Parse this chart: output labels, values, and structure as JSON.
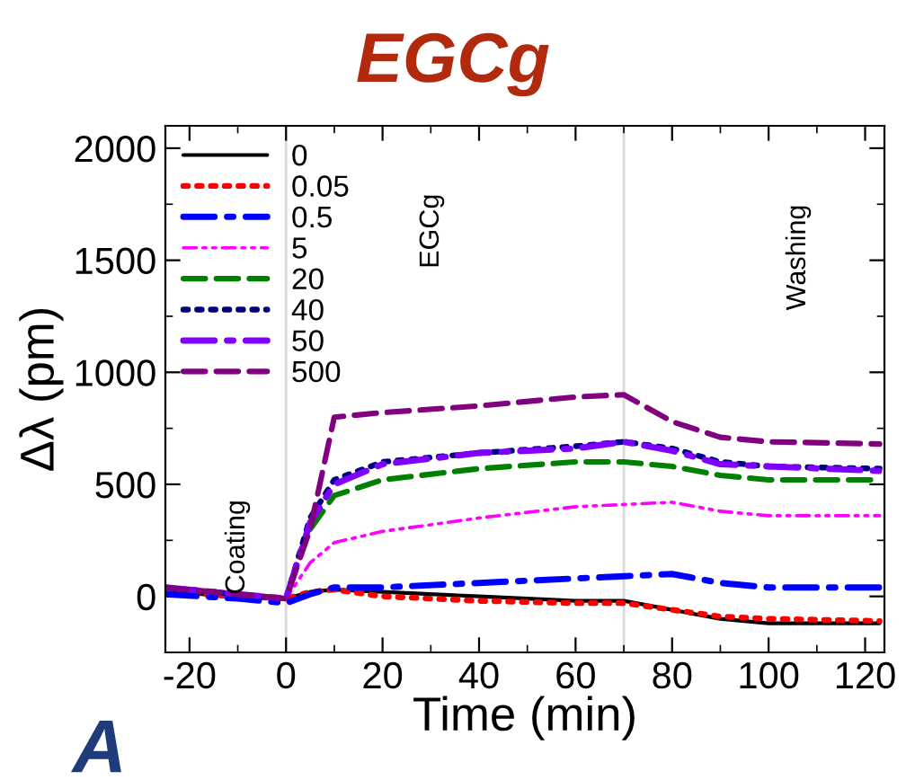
{
  "chart_data": {
    "type": "line",
    "title": "EGCg",
    "xlabel": "Time (min)",
    "ylabel": "Δλ (pm)",
    "xlim": [
      -25,
      124
    ],
    "xticks": [
      -20,
      0,
      20,
      40,
      60,
      80,
      100,
      120
    ],
    "ylim": [
      -250,
      2100
    ],
    "yticks": [
      0,
      500,
      1000,
      1500,
      2000
    ],
    "grid": false,
    "legend": "top left",
    "ref_lines": [
      {
        "axis": "x",
        "value": 0,
        "color": "#d9d9d9"
      },
      {
        "axis": "x",
        "value": 70,
        "color": "#d9d9d9"
      }
    ],
    "annotations": [
      "Coating",
      "EGCg",
      "Washing",
      "A"
    ],
    "x": [
      -25,
      -10,
      0,
      5,
      10,
      20,
      40,
      60,
      70,
      80,
      90,
      100,
      123
    ],
    "series": [
      {
        "name": "0",
        "color": "#000000",
        "line_style": "solid",
        "values": [
          20,
          0,
          -10,
          20,
          30,
          20,
          0,
          -20,
          -20,
          -60,
          -100,
          -120,
          -120
        ]
      },
      {
        "name": "0.05",
        "color": "#ff0000",
        "line_style": "dotted",
        "values": [
          20,
          0,
          -10,
          20,
          30,
          0,
          -20,
          -30,
          -30,
          -60,
          -90,
          -100,
          -110
        ]
      },
      {
        "name": "0.5",
        "color": "#0000ff",
        "line_style": "dashdot",
        "values": [
          10,
          -10,
          -30,
          10,
          40,
          40,
          60,
          80,
          90,
          100,
          60,
          40,
          40
        ]
      },
      {
        "name": "5",
        "color": "#ff00ff",
        "line_style": "dashdotdot",
        "values": [
          40,
          10,
          -10,
          150,
          240,
          290,
          350,
          400,
          410,
          420,
          380,
          360,
          360
        ]
      },
      {
        "name": "20",
        "color": "#008000",
        "line_style": "dashed",
        "values": [
          null,
          null,
          null,
          300,
          450,
          520,
          570,
          600,
          600,
          580,
          540,
          520,
          520
        ]
      },
      {
        "name": "40",
        "color": "#000080",
        "line_style": "dotted",
        "values": [
          40,
          10,
          -10,
          350,
          520,
          600,
          640,
          670,
          690,
          660,
          600,
          580,
          570
        ]
      },
      {
        "name": "50",
        "color": "#8000ff",
        "line_style": "dashdot",
        "values": [
          40,
          10,
          -10,
          330,
          500,
          590,
          640,
          660,
          690,
          650,
          590,
          580,
          560
        ]
      },
      {
        "name": "500",
        "color": "#800080",
        "line_style": "dashed",
        "values": [
          40,
          10,
          -10,
          300,
          800,
          820,
          850,
          890,
          900,
          780,
          710,
          690,
          680
        ]
      }
    ]
  }
}
